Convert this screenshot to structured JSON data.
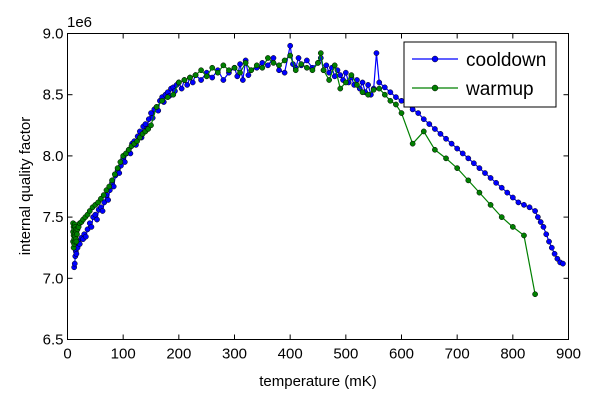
{
  "chart_data": {
    "type": "line",
    "xlabel": "temperature (mK)",
    "ylabel": "internal quality factor",
    "y_multiplier": "1e6",
    "xlim": [
      0,
      900
    ],
    "ylim": [
      6.5,
      9.0
    ],
    "x_ticks": [
      0,
      100,
      200,
      300,
      400,
      500,
      600,
      700,
      800,
      900
    ],
    "y_ticks": [
      6.5,
      7.0,
      7.5,
      8.0,
      8.5,
      9.0
    ],
    "y_tick_labels": [
      "6.5",
      "7.0",
      "7.5",
      "8.0",
      "8.5",
      "9.0"
    ],
    "grid": false,
    "legend_position": "top-right",
    "series": [
      {
        "name": "cooldown",
        "color": "#0000ff",
        "marker": "circle",
        "x": [
          12,
          13,
          14,
          15,
          16,
          17,
          18,
          20,
          22,
          25,
          28,
          30,
          33,
          36,
          40,
          43,
          46,
          50,
          53,
          56,
          60,
          63,
          66,
          70,
          73,
          76,
          80,
          83,
          86,
          90,
          93,
          96,
          100,
          103,
          106,
          110,
          113,
          116,
          120,
          123,
          126,
          130,
          133,
          136,
          140,
          143,
          146,
          150,
          153,
          156,
          160,
          163,
          166,
          170,
          173,
          176,
          180,
          183,
          186,
          190,
          193,
          196,
          200,
          205,
          210,
          215,
          220,
          225,
          230,
          240,
          250,
          260,
          270,
          280,
          290,
          300,
          305,
          310,
          315,
          320,
          325,
          330,
          340,
          350,
          360,
          370,
          380,
          390,
          400,
          405,
          410,
          415,
          420,
          430,
          440,
          450,
          455,
          460,
          465,
          470,
          475,
          480,
          485,
          490,
          495,
          500,
          505,
          510,
          515,
          520,
          525,
          530,
          535,
          540,
          545,
          550,
          555,
          560,
          570,
          580,
          590,
          600,
          610,
          620,
          630,
          640,
          650,
          660,
          670,
          680,
          690,
          700,
          710,
          720,
          730,
          740,
          750,
          760,
          770,
          780,
          790,
          800,
          810,
          820,
          830,
          840,
          845,
          850,
          855,
          860,
          865,
          870,
          875,
          880,
          885,
          890
        ],
        "y": [
          7.09,
          7.12,
          7.18,
          7.22,
          7.2,
          7.26,
          7.25,
          7.3,
          7.28,
          7.33,
          7.32,
          7.36,
          7.34,
          7.4,
          7.45,
          7.42,
          7.5,
          7.52,
          7.48,
          7.56,
          7.58,
          7.55,
          7.62,
          7.68,
          7.64,
          7.72,
          7.78,
          7.75,
          7.84,
          7.88,
          7.86,
          7.92,
          7.98,
          7.95,
          8.02,
          8.05,
          8.02,
          8.1,
          8.12,
          8.09,
          8.16,
          8.2,
          8.15,
          8.24,
          8.26,
          8.22,
          8.3,
          8.35,
          8.31,
          8.38,
          8.4,
          8.37,
          8.45,
          8.48,
          8.44,
          8.5,
          8.52,
          8.49,
          8.55,
          8.56,
          8.53,
          8.58,
          8.6,
          8.55,
          8.62,
          8.58,
          8.64,
          8.6,
          8.66,
          8.62,
          8.68,
          8.64,
          8.7,
          8.62,
          8.68,
          8.72,
          8.65,
          8.75,
          8.62,
          8.78,
          8.66,
          8.7,
          8.72,
          8.76,
          8.74,
          8.8,
          8.7,
          8.68,
          8.9,
          8.75,
          8.72,
          8.8,
          8.74,
          8.78,
          8.72,
          8.76,
          8.8,
          8.7,
          8.74,
          8.68,
          8.72,
          8.65,
          8.7,
          8.66,
          8.62,
          8.68,
          8.6,
          8.64,
          8.58,
          8.62,
          8.55,
          8.6,
          8.52,
          8.58,
          8.5,
          8.55,
          8.84,
          8.6,
          8.56,
          8.52,
          8.48,
          8.45,
          8.42,
          8.38,
          8.35,
          8.3,
          8.26,
          8.22,
          8.18,
          8.14,
          8.1,
          8.06,
          8.02,
          7.98,
          7.94,
          7.9,
          7.86,
          7.82,
          7.78,
          7.74,
          7.7,
          7.66,
          7.62,
          7.6,
          7.58,
          7.55,
          7.5,
          7.46,
          7.42,
          7.36,
          7.3,
          7.25,
          7.2,
          7.16,
          7.13,
          7.12
        ]
      },
      {
        "name": "warmup",
        "color": "#008000",
        "marker": "circle",
        "x": [
          10,
          10,
          10,
          11,
          11,
          11,
          12,
          12,
          12,
          13,
          13,
          13,
          14,
          14,
          15,
          15,
          16,
          16,
          17,
          18,
          20,
          22,
          25,
          28,
          32,
          36,
          40,
          45,
          50,
          55,
          60,
          65,
          70,
          75,
          80,
          85,
          90,
          95,
          100,
          105,
          110,
          115,
          120,
          125,
          130,
          135,
          140,
          145,
          150,
          160,
          170,
          180,
          190,
          200,
          210,
          220,
          230,
          240,
          250,
          260,
          270,
          280,
          290,
          300,
          310,
          320,
          330,
          340,
          350,
          360,
          370,
          380,
          390,
          400,
          410,
          420,
          430,
          440,
          450,
          455,
          460,
          470,
          480,
          490,
          500,
          510,
          520,
          530,
          540,
          550,
          560,
          570,
          580,
          590,
          600,
          620,
          640,
          660,
          680,
          700,
          720,
          740,
          760,
          780,
          800,
          820,
          840
        ],
        "y": [
          7.45,
          7.38,
          7.3,
          7.42,
          7.35,
          7.25,
          7.4,
          7.32,
          7.28,
          7.44,
          7.36,
          7.3,
          7.42,
          7.34,
          7.4,
          7.32,
          7.38,
          7.3,
          7.36,
          7.4,
          7.42,
          7.45,
          7.46,
          7.48,
          7.5,
          7.52,
          7.55,
          7.58,
          7.6,
          7.62,
          7.65,
          7.68,
          7.72,
          7.75,
          7.8,
          7.85,
          7.9,
          7.95,
          8.0,
          8.02,
          8.05,
          8.08,
          8.1,
          8.12,
          8.15,
          8.18,
          8.2,
          8.22,
          8.25,
          8.4,
          8.45,
          8.48,
          8.5,
          8.6,
          8.62,
          8.64,
          8.66,
          8.7,
          8.65,
          8.72,
          8.68,
          8.74,
          8.7,
          8.72,
          8.68,
          8.76,
          8.7,
          8.74,
          8.72,
          8.8,
          8.76,
          8.74,
          8.78,
          8.82,
          8.7,
          8.75,
          8.72,
          8.7,
          8.76,
          8.84,
          8.7,
          8.62,
          8.74,
          8.55,
          8.6,
          8.66,
          8.58,
          8.52,
          8.5,
          8.54,
          8.55,
          8.5,
          8.45,
          8.42,
          8.35,
          8.1,
          8.2,
          8.05,
          7.98,
          7.9,
          7.8,
          7.7,
          7.6,
          7.5,
          7.42,
          7.35,
          6.87
        ]
      }
    ]
  }
}
